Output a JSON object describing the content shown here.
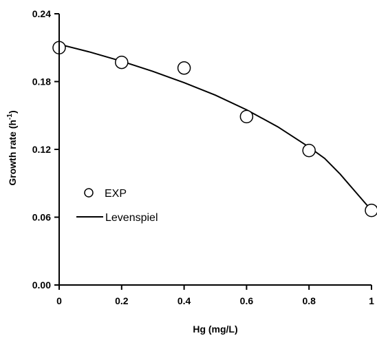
{
  "chart_data": {
    "type": "scatter",
    "xlabel": "Hg (mg/L)",
    "ylabel_main": "Growth rate (h",
    "ylabel_sup": "-1",
    "ylabel_close": ")",
    "xlim": [
      0,
      1
    ],
    "ylim": [
      0,
      0.24
    ],
    "x_ticks": [
      0,
      0.2,
      0.4,
      0.6,
      0.8,
      1
    ],
    "x_tick_labels": [
      "0",
      "0.2",
      "0.4",
      "0.6",
      "0.8",
      "1"
    ],
    "y_ticks": [
      0,
      0.06,
      0.12,
      0.18,
      0.24
    ],
    "y_tick_labels": [
      "0.00",
      "0.06",
      "0.12",
      "0.18",
      "0.24"
    ],
    "grid": false,
    "legend_position": "left-middle",
    "series": [
      {
        "name": "EXP",
        "kind": "scatter",
        "x": [
          0,
          0.2,
          0.4,
          0.6,
          0.8,
          1.0
        ],
        "y": [
          0.21,
          0.197,
          0.192,
          0.149,
          0.119,
          0.066
        ]
      },
      {
        "name": "Levenspiel",
        "kind": "line",
        "x": [
          0,
          0.1,
          0.2,
          0.3,
          0.4,
          0.5,
          0.6,
          0.7,
          0.8,
          0.85,
          0.9,
          0.95,
          1.0
        ],
        "y": [
          0.213,
          0.206,
          0.198,
          0.189,
          0.179,
          0.168,
          0.155,
          0.14,
          0.122,
          0.112,
          0.098,
          0.082,
          0.066
        ]
      }
    ]
  }
}
